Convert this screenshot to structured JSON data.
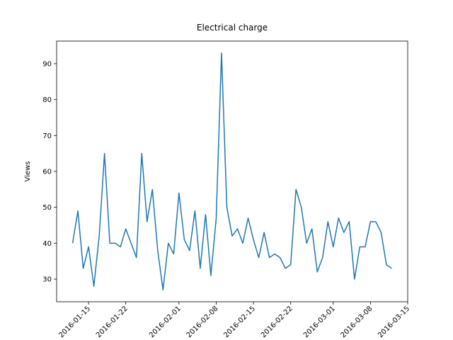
{
  "chart_data": {
    "type": "line",
    "title": "Electrical charge",
    "y_label": "Views",
    "x": [
      "2016-01-12",
      "2016-01-13",
      "2016-01-14",
      "2016-01-15",
      "2016-01-16",
      "2016-01-17",
      "2016-01-18",
      "2016-01-19",
      "2016-01-20",
      "2016-01-21",
      "2016-01-22",
      "2016-01-23",
      "2016-01-24",
      "2016-01-25",
      "2016-01-26",
      "2016-01-27",
      "2016-01-28",
      "2016-01-29",
      "2016-01-30",
      "2016-01-31",
      "2016-02-01",
      "2016-02-02",
      "2016-02-03",
      "2016-02-04",
      "2016-02-05",
      "2016-02-06",
      "2016-02-07",
      "2016-02-08",
      "2016-02-09",
      "2016-02-10",
      "2016-02-11",
      "2016-02-12",
      "2016-02-13",
      "2016-02-14",
      "2016-02-15",
      "2016-02-16",
      "2016-02-17",
      "2016-02-18",
      "2016-02-19",
      "2016-02-20",
      "2016-02-21",
      "2016-02-22",
      "2016-02-23",
      "2016-02-24",
      "2016-02-25",
      "2016-02-26",
      "2016-02-27",
      "2016-02-28",
      "2016-02-29",
      "2016-03-01",
      "2016-03-02",
      "2016-03-03",
      "2016-03-04",
      "2016-03-05",
      "2016-03-06",
      "2016-03-07",
      "2016-03-08",
      "2016-03-09",
      "2016-03-10",
      "2016-03-11",
      "2016-03-12"
    ],
    "series": [
      {
        "name": "Views",
        "color": "#1f77b4",
        "values": [
          40,
          49,
          33,
          39,
          28,
          42,
          65,
          40,
          40,
          39,
          44,
          40,
          36,
          65,
          46,
          55,
          38,
          27,
          40,
          37,
          54,
          41,
          38,
          49,
          33,
          48,
          31,
          47,
          93,
          50,
          42,
          44,
          40,
          47,
          41,
          36,
          43,
          36,
          37,
          36,
          33,
          34,
          55,
          50,
          40,
          44,
          32,
          36,
          46,
          39,
          47,
          43,
          46,
          30,
          39,
          39,
          46,
          46,
          43,
          34,
          33
        ]
      }
    ],
    "xlim": [
      "2016-01-09",
      "2016-03-15"
    ],
    "xticks": [
      "2016-01-15",
      "2016-01-22",
      "2016-02-01",
      "2016-02-08",
      "2016-02-15",
      "2016-02-22",
      "2016-03-01",
      "2016-03-08",
      "2016-03-15"
    ],
    "ylim": [
      23.7,
      96.3
    ],
    "yticks": [
      30,
      40,
      50,
      60,
      70,
      80,
      90
    ],
    "grid": false
  }
}
